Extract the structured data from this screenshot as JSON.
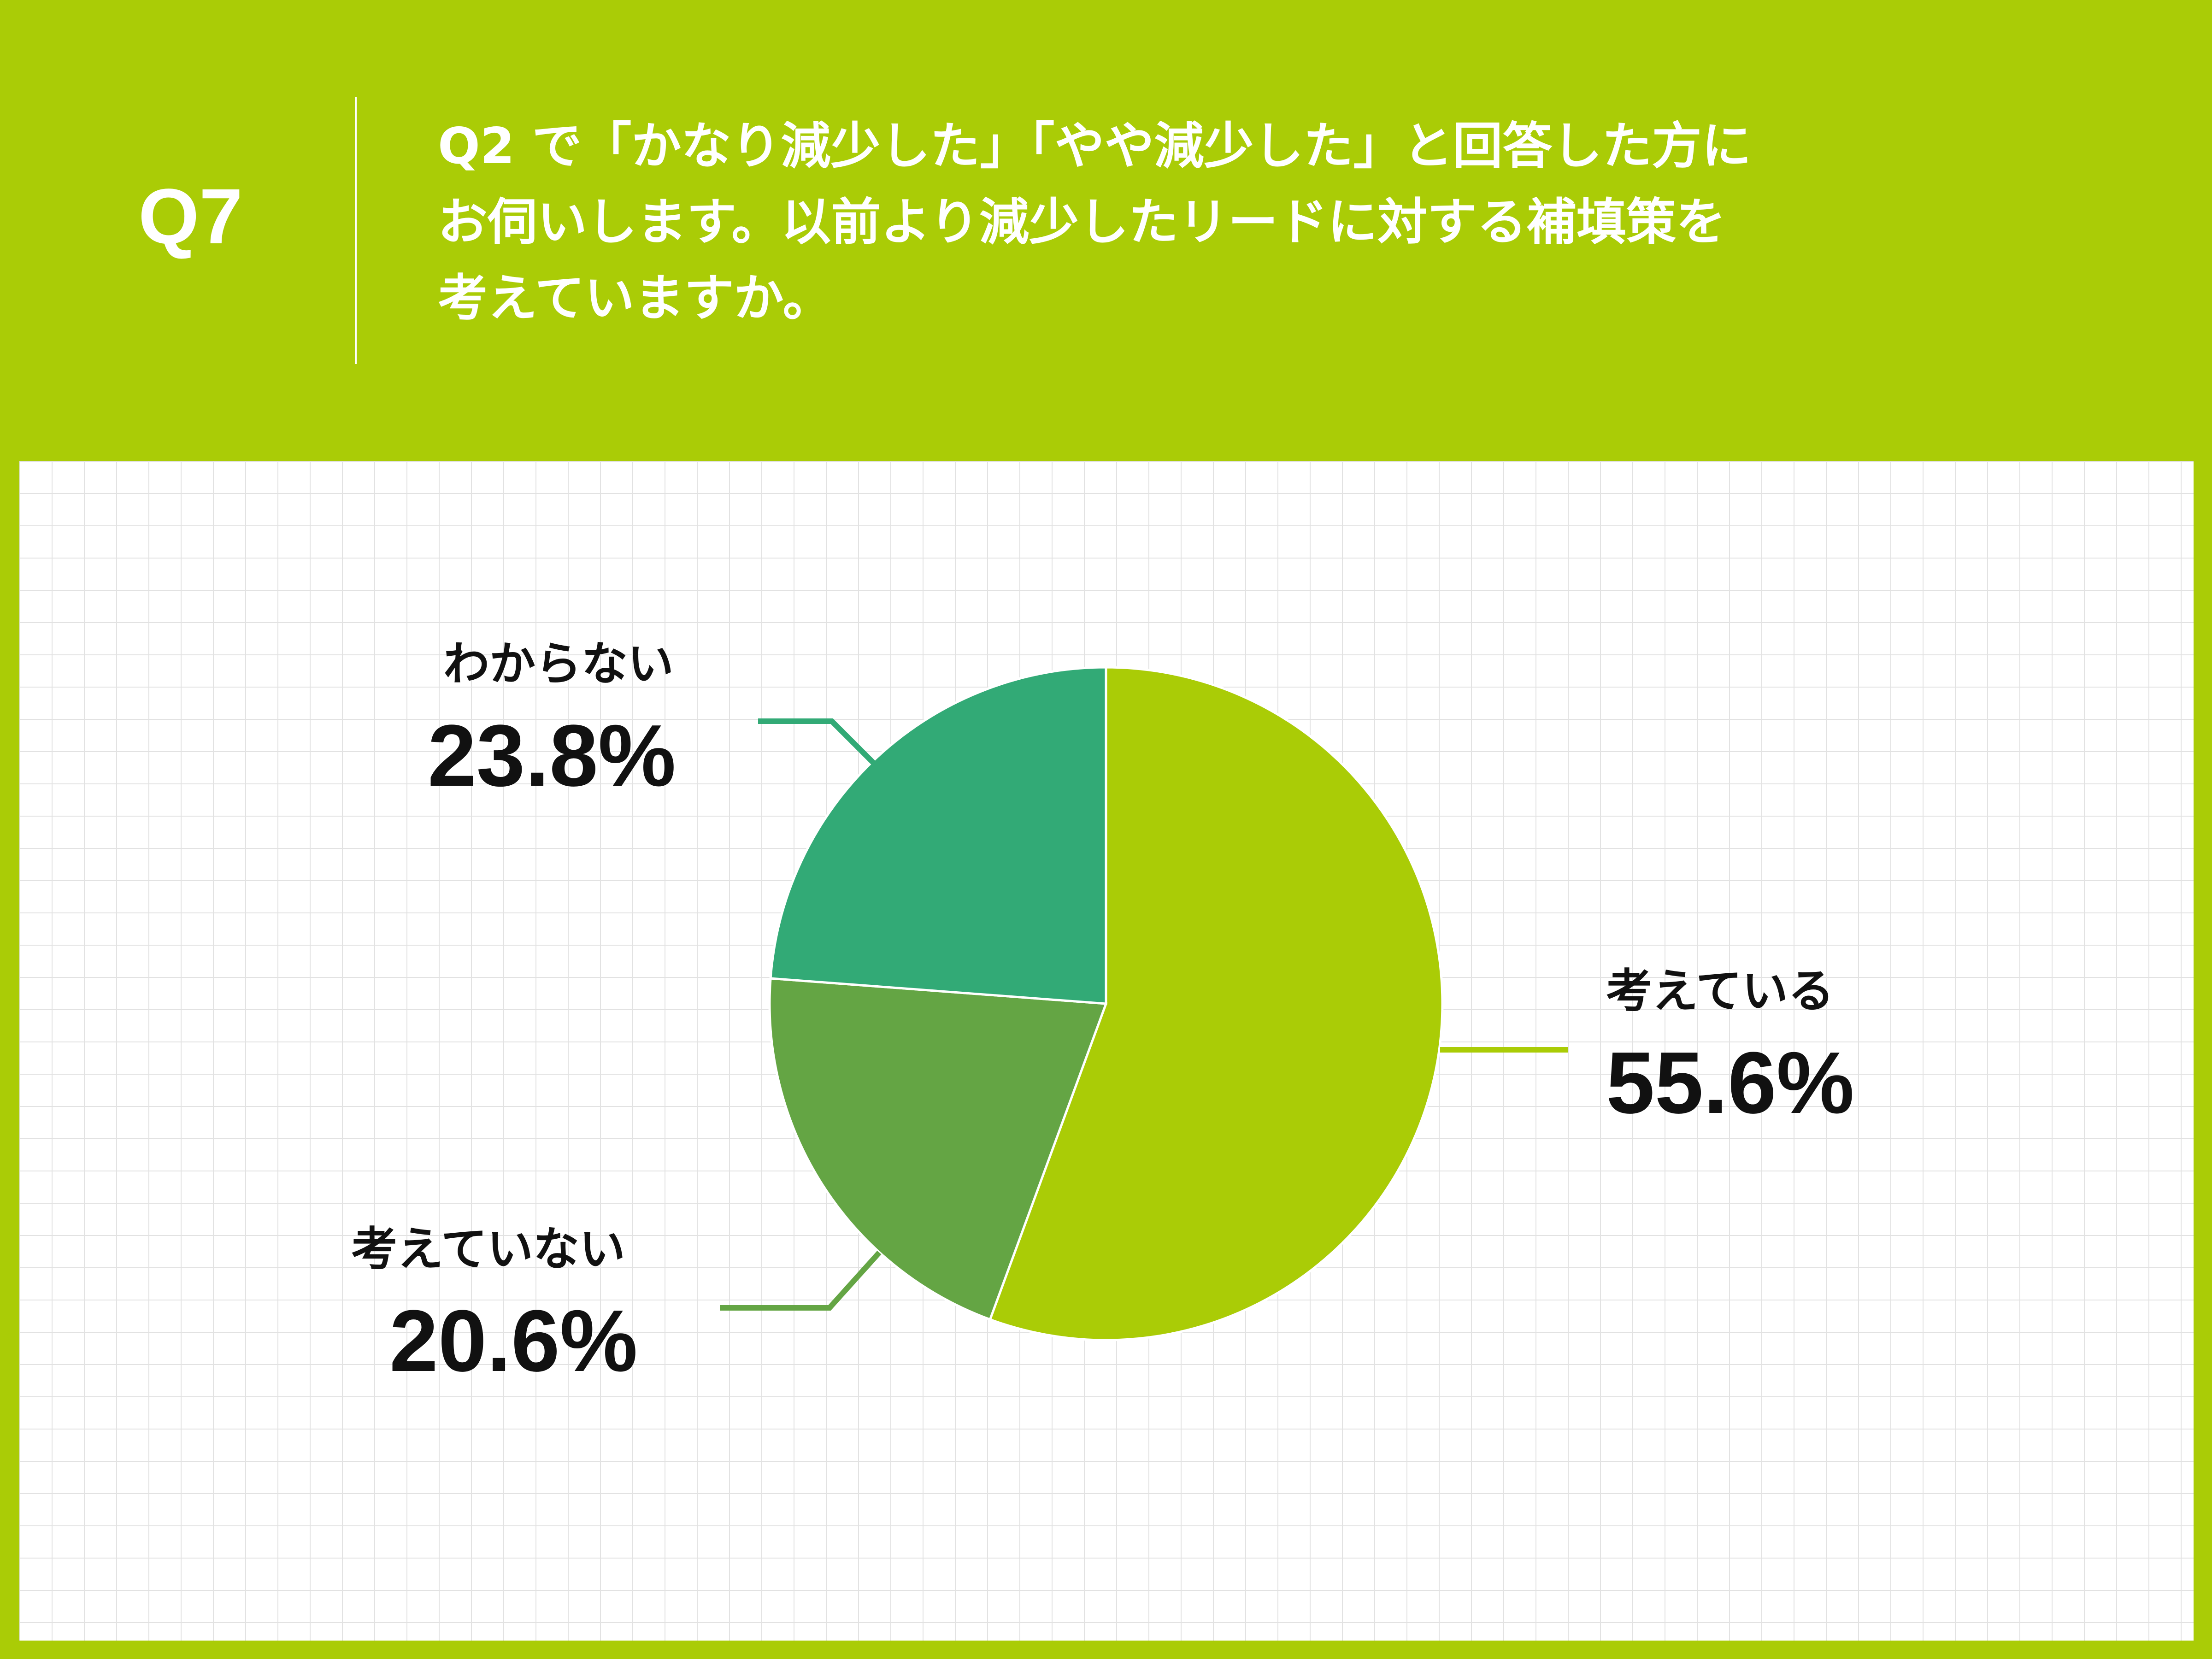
{
  "header": {
    "question_number": "Q7",
    "question_lines": [
      "Q2 で「かなり減少した」「やや減少した」と回答した方に",
      "お伺いします。以前より減少したリードに対する補填策を",
      "考えていますか。"
    ]
  },
  "colors": {
    "background": "#aacc06",
    "panel": "#ffffff",
    "grid": "#e2e2e2",
    "text_header": "#ffffff",
    "text_label": "#111111"
  },
  "chart_data": {
    "type": "pie",
    "start_angle_deg": 0,
    "direction": "clockwise",
    "slices": [
      {
        "label": "考えている",
        "value": 55.6,
        "display": "55.6%",
        "color": "#aacc06"
      },
      {
        "label": "考えていない",
        "value": 20.6,
        "display": "20.6%",
        "color": "#64a544"
      },
      {
        "label": "わからない",
        "value": 23.8,
        "display": "23.8%",
        "color": "#32aa76"
      }
    ]
  }
}
